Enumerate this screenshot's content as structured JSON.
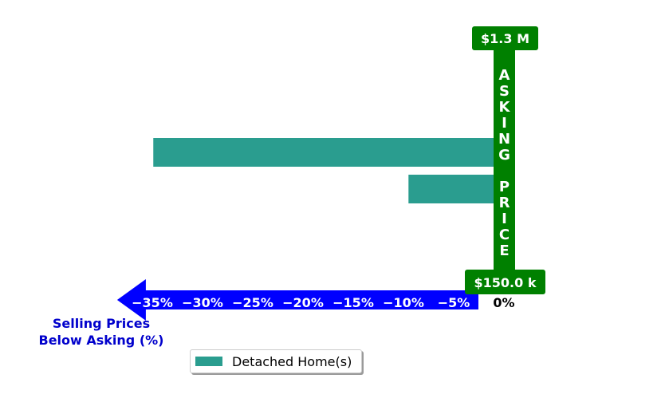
{
  "chart_data": {
    "type": "bar",
    "orientation": "horizontal",
    "x_ticks": [
      -35,
      -30,
      -25,
      -20,
      -15,
      -10,
      -5
    ],
    "x_tick_labels": [
      "−35%",
      "−30%",
      "−25%",
      "−20%",
      "−15%",
      "−10%",
      "−5%"
    ],
    "zero_label": "0%",
    "xlim": [
      -38.5,
      0.9
    ],
    "xlabel": "Selling Prices\nBelow Asking (%)",
    "series": [
      {
        "name": "Detached Home(s)",
        "values": [
          -34.9,
          -9.5
        ]
      }
    ],
    "asking_price_label": "ASKING PRICE",
    "price_top_label": "$1.3 M",
    "price_bottom_label": "$150.0 k",
    "legend": {
      "location": "lower-center"
    },
    "colors": {
      "bar": "#2a9d8f",
      "arrow": "#0000ff",
      "asking_bar": "#008000",
      "xlabel": "#0000cc"
    }
  }
}
